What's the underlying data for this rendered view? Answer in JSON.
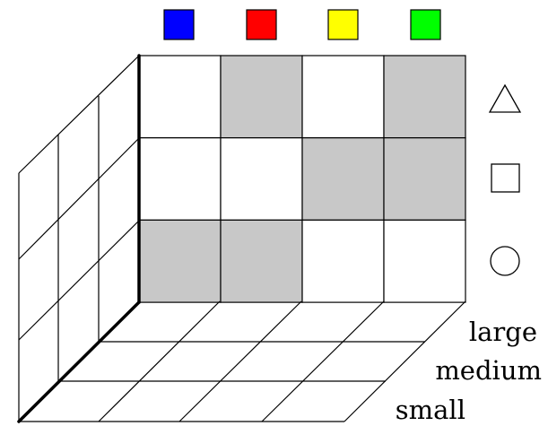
{
  "color_swatches": [
    {
      "name": "blue",
      "color": "#0000ff"
    },
    {
      "name": "red",
      "color": "#ff0000"
    },
    {
      "name": "yellow",
      "color": "#ffff00"
    },
    {
      "name": "green",
      "color": "#00ff00"
    }
  ],
  "shape_icons": [
    "triangle-icon",
    "square-icon",
    "circle-icon"
  ],
  "size_labels": [
    "large",
    "medium",
    "small"
  ],
  "front_grid": {
    "shaded_color": "#c8c8c8",
    "rows": [
      [
        false,
        true,
        false,
        true
      ],
      [
        false,
        false,
        true,
        true
      ],
      [
        true,
        true,
        false,
        false
      ]
    ]
  }
}
